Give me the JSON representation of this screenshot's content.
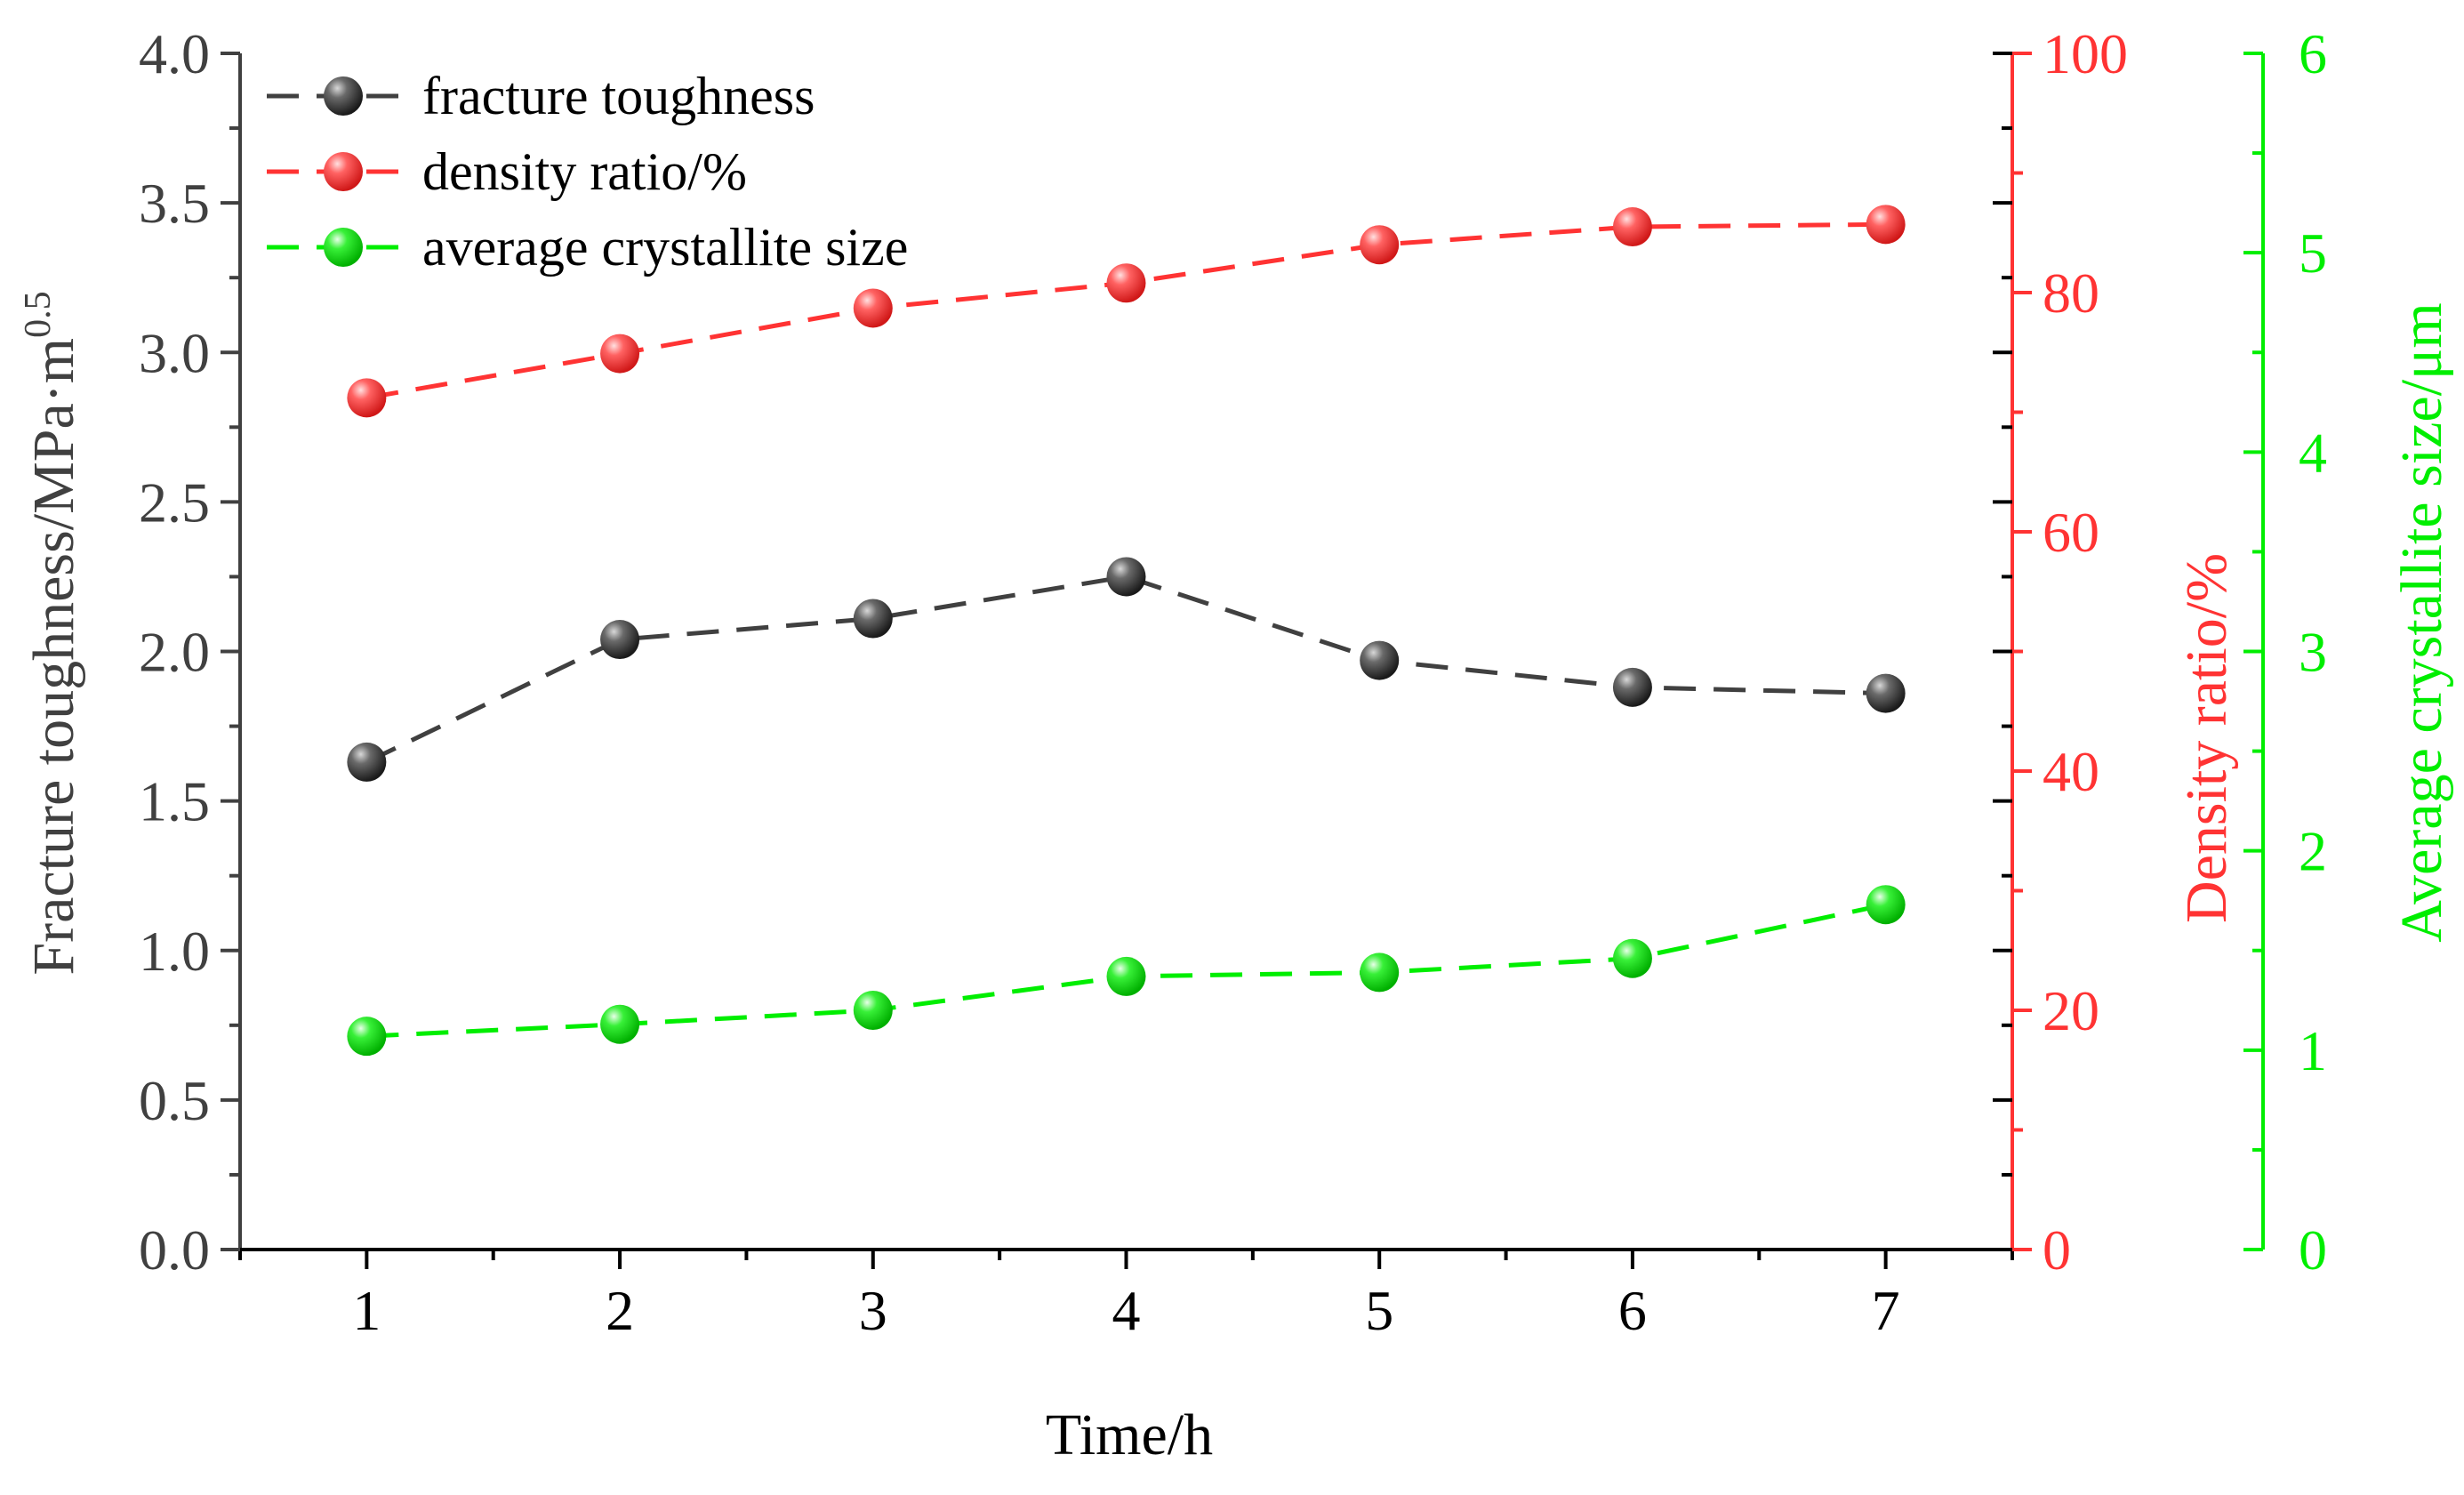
{
  "chart_data": {
    "type": "line",
    "x": [
      1,
      2,
      3,
      4,
      5,
      6,
      7
    ],
    "xlabel": "Time/h",
    "xlim": [
      0.5,
      7.5
    ],
    "x_ticks": [
      "1",
      "2",
      "3",
      "4",
      "5",
      "6",
      "7"
    ],
    "y_left": {
      "label": "Fracture toughness/MPa·m",
      "label_superscript": "0.5",
      "lim": [
        0,
        4
      ],
      "ticks": [
        "0.0",
        "0.5",
        "1.0",
        "1.5",
        "2.0",
        "2.5",
        "3.0",
        "3.5",
        "4.0"
      ],
      "color": "#404040"
    },
    "y_right1": {
      "label": "Density ratio/%",
      "lim": [
        0,
        100
      ],
      "ticks": [
        "0",
        "20",
        "40",
        "60",
        "80",
        "100"
      ],
      "color": "#ff3333"
    },
    "y_right2": {
      "label": "Average crystallite size/μm",
      "lim": [
        0,
        6
      ],
      "ticks": [
        "0",
        "1",
        "2",
        "3",
        "4",
        "5",
        "6"
      ],
      "color": "#00ee00"
    },
    "series": [
      {
        "name": "fracture toughness",
        "axis": "y_left",
        "values": [
          1.63,
          2.04,
          2.11,
          2.25,
          1.97,
          1.88,
          1.86
        ],
        "color": "#404040",
        "marker_color": "#3a3a3a"
      },
      {
        "name": "density ratio/%",
        "axis": "y_right1",
        "values": [
          71.2,
          74.9,
          78.7,
          80.8,
          84.0,
          85.5,
          85.7
        ],
        "color": "#ff3333",
        "marker_color": "#ff3a3a"
      },
      {
        "name": "average crystallite size",
        "axis": "y_right2",
        "values": [
          1.07,
          1.13,
          1.2,
          1.37,
          1.39,
          1.46,
          1.73
        ],
        "color": "#00ee00",
        "marker_color": "#18e818"
      }
    ],
    "legend_position": "top-left"
  }
}
